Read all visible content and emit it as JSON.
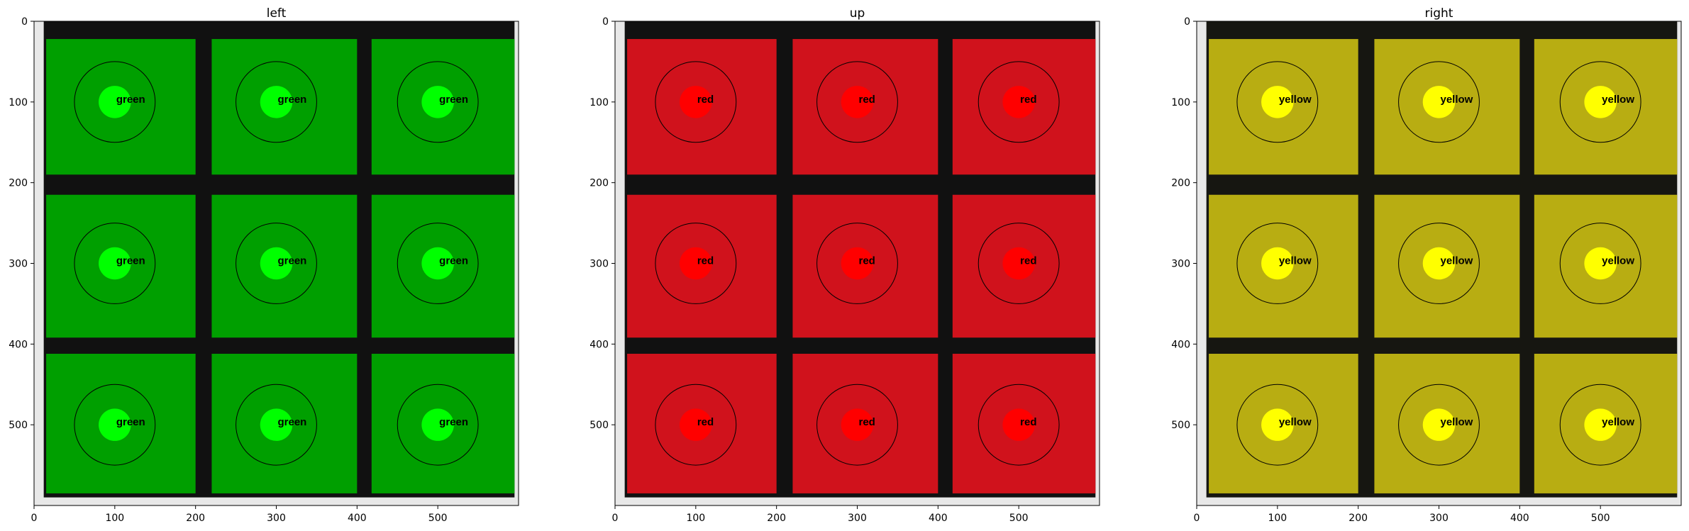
{
  "figure": {
    "panels": [
      {
        "title": "left"
      },
      {
        "title": "up"
      },
      {
        "title": "right"
      }
    ]
  },
  "chart_data": [
    {
      "type": "heatmap",
      "title": "left",
      "xlim": [
        0,
        600
      ],
      "ylim": [
        600,
        0
      ],
      "xticks": [
        0,
        100,
        200,
        300,
        400,
        500
      ],
      "yticks": [
        0,
        100,
        200,
        300,
        400,
        500
      ],
      "grid": false,
      "colors": {
        "face": "#009f00",
        "border": "#111111",
        "marker": "#00ff00"
      },
      "cells": [
        {
          "x": 100,
          "y": 100,
          "label": "green"
        },
        {
          "x": 300,
          "y": 100,
          "label": "green"
        },
        {
          "x": 500,
          "y": 100,
          "label": "green"
        },
        {
          "x": 100,
          "y": 300,
          "label": "green"
        },
        {
          "x": 300,
          "y": 300,
          "label": "green"
        },
        {
          "x": 500,
          "y": 300,
          "label": "green"
        },
        {
          "x": 100,
          "y": 500,
          "label": "green"
        },
        {
          "x": 300,
          "y": 500,
          "label": "green"
        },
        {
          "x": 500,
          "y": 500,
          "label": "green"
        }
      ]
    },
    {
      "type": "heatmap",
      "title": "up",
      "xlim": [
        0,
        600
      ],
      "ylim": [
        600,
        0
      ],
      "xticks": [
        0,
        100,
        200,
        300,
        400,
        500
      ],
      "yticks": [
        0,
        100,
        200,
        300,
        400,
        500
      ],
      "grid": false,
      "colors": {
        "face": "#d0121c",
        "border": "#111111",
        "marker": "#ff0000"
      },
      "cells": [
        {
          "x": 100,
          "y": 100,
          "label": "red"
        },
        {
          "x": 300,
          "y": 100,
          "label": "red"
        },
        {
          "x": 500,
          "y": 100,
          "label": "red"
        },
        {
          "x": 100,
          "y": 300,
          "label": "red"
        },
        {
          "x": 300,
          "y": 300,
          "label": "red"
        },
        {
          "x": 500,
          "y": 300,
          "label": "red"
        },
        {
          "x": 100,
          "y": 500,
          "label": "red"
        },
        {
          "x": 300,
          "y": 500,
          "label": "red"
        },
        {
          "x": 500,
          "y": 500,
          "label": "red"
        }
      ]
    },
    {
      "type": "heatmap",
      "title": "right",
      "xlim": [
        0,
        600
      ],
      "ylim": [
        600,
        0
      ],
      "xticks": [
        0,
        100,
        200,
        300,
        400,
        500
      ],
      "yticks": [
        0,
        100,
        200,
        300,
        400,
        500
      ],
      "grid": false,
      "colors": {
        "face": "#b8ad12",
        "border": "#161611",
        "marker": "#ffff00"
      },
      "cells": [
        {
          "x": 100,
          "y": 100,
          "label": "yellow"
        },
        {
          "x": 300,
          "y": 100,
          "label": "yellow"
        },
        {
          "x": 500,
          "y": 100,
          "label": "yellow"
        },
        {
          "x": 100,
          "y": 300,
          "label": "yellow"
        },
        {
          "x": 300,
          "y": 300,
          "label": "yellow"
        },
        {
          "x": 500,
          "y": 300,
          "label": "yellow"
        },
        {
          "x": 100,
          "y": 500,
          "label": "yellow"
        },
        {
          "x": 300,
          "y": 500,
          "label": "yellow"
        },
        {
          "x": 500,
          "y": 500,
          "label": "yellow"
        }
      ]
    }
  ]
}
